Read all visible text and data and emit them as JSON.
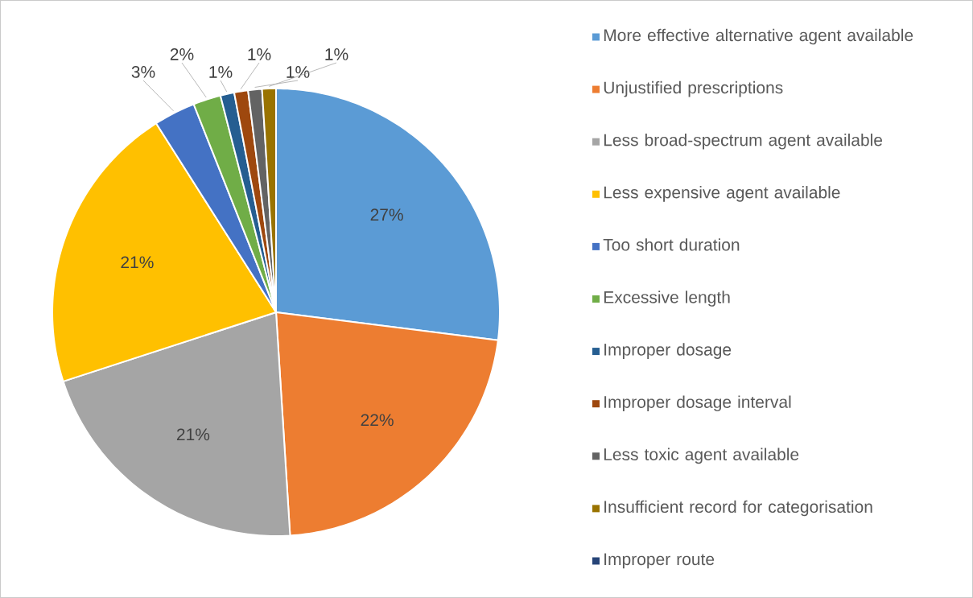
{
  "chart_data": {
    "type": "pie",
    "categories": [
      "More effective alternative agent available",
      "Unjustified prescriptions",
      "Less broad-spectrum agent available",
      "Less expensive agent available",
      "Too short duration",
      "Excessive length",
      "Improper dosage",
      "Improper dosage interval",
      "Less toxic agent available",
      "Insufficient record for categorisation",
      "Improper route"
    ],
    "values": [
      27,
      22,
      21,
      21,
      3,
      2,
      1,
      1,
      1,
      1,
      0
    ],
    "value_labels": [
      "27%",
      "22%",
      "21%",
      "21%",
      "3%",
      "2%",
      "1%",
      "1%",
      "1%",
      "1%",
      null
    ],
    "colors": [
      "#5b9bd5",
      "#ed7d31",
      "#a5a5a5",
      "#ffc000",
      "#4472c4",
      "#70ad47",
      "#255e91",
      "#9e480e",
      "#636363",
      "#997300",
      "#264478"
    ],
    "legend": "right"
  }
}
